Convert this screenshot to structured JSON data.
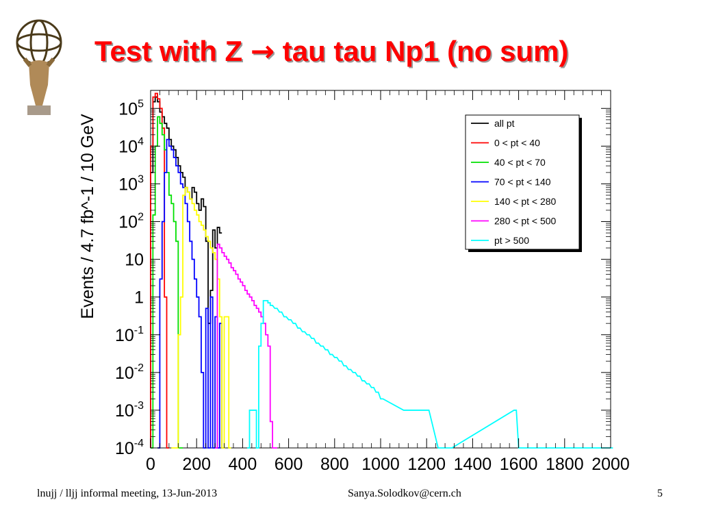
{
  "slide": {
    "title_pre": "Test with Z ",
    "title_arrow": "→",
    "title_post": " tau tau Np1 (no sum)",
    "footer_left": "lnujj / lljj informal meeting, 13-Jun-2013",
    "footer_center": "Sanya.Solodkov@cern.ch",
    "footer_right": "5",
    "logo_icon": "atlas-figure-logo"
  },
  "chart_data": {
    "type": "line",
    "step": true,
    "ylabel": "Events / 4.7 fb^-1 / 10 GeV",
    "xlabel": "",
    "xlim": [
      0,
      2000
    ],
    "ylim": [
      0.0001,
      300000
    ],
    "yscale": "log",
    "x_ticks": [
      "0",
      "200",
      "400",
      "600",
      "800",
      "1000",
      "1200",
      "1400",
      "1600",
      "1800",
      "2000"
    ],
    "x_tick_values": [
      0,
      200,
      400,
      600,
      800,
      1000,
      1200,
      1400,
      1600,
      1800,
      2000
    ],
    "y_ticks": [
      {
        "value": 100000,
        "label": "10",
        "exp": "5"
      },
      {
        "value": 10000,
        "label": "10",
        "exp": "4"
      },
      {
        "value": 1000,
        "label": "10",
        "exp": "3"
      },
      {
        "value": 100,
        "label": "10",
        "exp": "2"
      },
      {
        "value": 10,
        "label": "10",
        "exp": ""
      },
      {
        "value": 1,
        "label": "1",
        "exp": ""
      },
      {
        "value": 0.1,
        "label": "10",
        "exp": "-1"
      },
      {
        "value": 0.01,
        "label": "10",
        "exp": "-2"
      },
      {
        "value": 0.001,
        "label": "10",
        "exp": "-3"
      },
      {
        "value": 0.0001,
        "label": "10",
        "exp": "-4"
      }
    ],
    "grid": false,
    "legend_position": "top-right",
    "bin_width": 10,
    "series": [
      {
        "name": "all  pt",
        "color": "#000000",
        "x": [
          0,
          10,
          20,
          30,
          40,
          50,
          60,
          70,
          80,
          90,
          100,
          110,
          120,
          130,
          140,
          150,
          160,
          170,
          180,
          190,
          200,
          210,
          220,
          230,
          240,
          250,
          260,
          270,
          280,
          290,
          300
        ],
        "values": [
          2000,
          150000,
          200000,
          150000,
          80000,
          60000,
          40000,
          30000,
          15000,
          10000,
          8000,
          5000,
          3000,
          2000,
          1500,
          800,
          600,
          400,
          800,
          600,
          300,
          200,
          400,
          250,
          30,
          0.2,
          1.5,
          60,
          20,
          70,
          50
        ]
      },
      {
        "name": "0 < pt < 40",
        "color": "#ff0000",
        "x": [
          0,
          10,
          20,
          30,
          40,
          50,
          60,
          70
        ],
        "values": [
          10000,
          200000,
          250000,
          180000,
          100000,
          30000,
          1,
          0.0001
        ]
      },
      {
        "name": "40 < pt < 70",
        "color": "#00e000",
        "x": [
          0,
          10,
          20,
          30,
          40,
          50,
          60,
          70,
          80,
          90,
          100,
          110,
          120,
          130
        ],
        "values": [
          0.0001,
          150,
          10000,
          60000,
          40000,
          20000,
          8000,
          2000,
          500,
          300,
          100,
          30,
          0.0001,
          0.0001
        ]
      },
      {
        "name": "70 < pt < 140",
        "color": "#0000ff",
        "x": [
          30,
          40,
          50,
          60,
          70,
          80,
          90,
          100,
          110,
          120,
          130,
          140,
          150,
          160,
          170,
          180,
          190,
          200,
          210,
          220,
          230,
          240,
          250,
          260,
          270,
          280,
          290,
          300,
          310
        ],
        "values": [
          0.0001,
          3,
          100,
          2000,
          15000,
          10000,
          8000,
          5000,
          3000,
          2000,
          1000,
          800,
          300,
          100,
          30,
          10,
          3,
          1,
          0.3,
          0.01,
          0.0001,
          0.5,
          0.0001,
          1,
          0.0001,
          0.3,
          0.0001,
          0.2,
          0.0001
        ]
      },
      {
        "name": "140 < pt < 280",
        "color": "#ffff00",
        "x": [
          90,
          100,
          110,
          120,
          130,
          140,
          150,
          160,
          170,
          180,
          190,
          200,
          210,
          220,
          230,
          240,
          250,
          260,
          270,
          280,
          290,
          300,
          310,
          320,
          330,
          340
        ],
        "values": [
          0.0001,
          0.0001,
          0.0001,
          0.1,
          1,
          500,
          800,
          600,
          400,
          300,
          200,
          150,
          100,
          80,
          60,
          40,
          30,
          20,
          15,
          10,
          3,
          0.3,
          0.0001,
          0.3,
          0.3,
          0.0001
        ]
      },
      {
        "name": "280 < pt < 500",
        "color": "#ff00ff",
        "x": [
          280,
          290,
          300,
          310,
          320,
          330,
          340,
          350,
          360,
          370,
          380,
          390,
          400,
          410,
          420,
          430,
          440,
          450,
          460,
          470,
          480,
          490,
          500,
          510,
          520,
          530,
          540
        ],
        "values": [
          0.0001,
          25,
          20,
          15,
          12,
          10,
          8,
          6,
          5,
          4,
          3,
          2.5,
          2,
          1.5,
          1.2,
          1,
          0.8,
          0.6,
          0.5,
          0.4,
          0.3,
          0.2,
          0.1,
          0.05,
          0.0005,
          0.0001,
          0.0001
        ]
      },
      {
        "name": "pt > 500",
        "color": "#00ffff",
        "x": [
          420,
          430,
          440,
          450,
          460,
          470,
          480,
          490,
          500,
          510,
          520,
          540,
          560,
          580,
          600,
          620,
          640,
          660,
          680,
          700,
          720,
          740,
          760,
          780,
          800,
          820,
          840,
          860,
          880,
          900,
          920,
          940,
          960,
          980,
          1000,
          1100,
          1150,
          1200,
          1250,
          1300,
          1580,
          1600,
          2000
        ],
        "values": [
          0.0001,
          0.001,
          0.001,
          0.001,
          0.0001,
          0.05,
          0.2,
          0.8,
          0.8,
          0.7,
          0.6,
          0.5,
          0.4,
          0.3,
          0.25,
          0.2,
          0.15,
          0.12,
          0.1,
          0.08,
          0.06,
          0.05,
          0.04,
          0.03,
          0.025,
          0.02,
          0.015,
          0.012,
          0.01,
          0.008,
          0.006,
          0.005,
          0.004,
          0.003,
          0.002,
          0.001,
          0.001,
          0.001,
          0.0001,
          0.0001,
          0.001,
          0.0001,
          0.0001
        ]
      }
    ]
  }
}
